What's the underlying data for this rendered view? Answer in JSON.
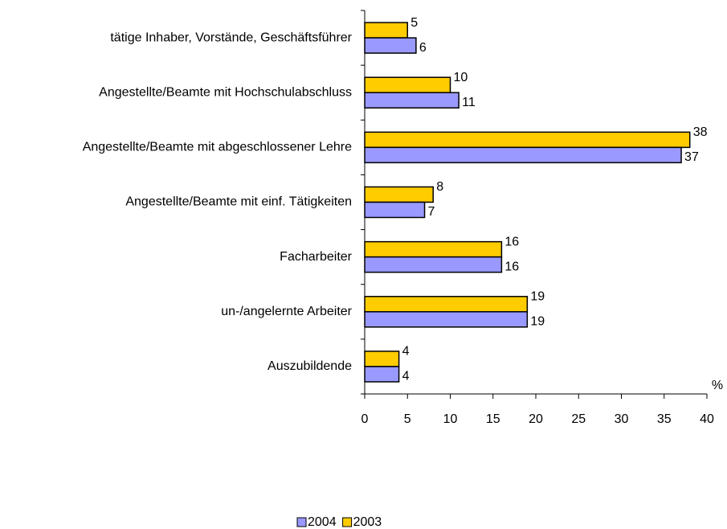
{
  "chart_data": {
    "type": "bar",
    "orientation": "horizontal",
    "categories": [
      "tätige Inhaber, Vorstände, Geschäftsführer",
      "Angestellte/Beamte mit Hochschulabschluss",
      "Angestellte/Beamte mit abgeschlossener Lehre",
      "Angestellte/Beamte mit einf. Tätigkeiten",
      "Facharbeiter",
      "un-/angelernte Arbeiter",
      "Auszubildende"
    ],
    "series": [
      {
        "name": "2004",
        "color": "#9999ff",
        "values": [
          6,
          11,
          37,
          7,
          16,
          19,
          4
        ]
      },
      {
        "name": "2003",
        "color": "#ffcc00",
        "values": [
          5,
          10,
          38,
          8,
          16,
          19,
          4
        ]
      }
    ],
    "x_label": "%",
    "xlim": [
      0,
      40
    ],
    "xticks": [
      0,
      5,
      10,
      15,
      20,
      25,
      30,
      35,
      40
    ],
    "legend": "bottom"
  }
}
